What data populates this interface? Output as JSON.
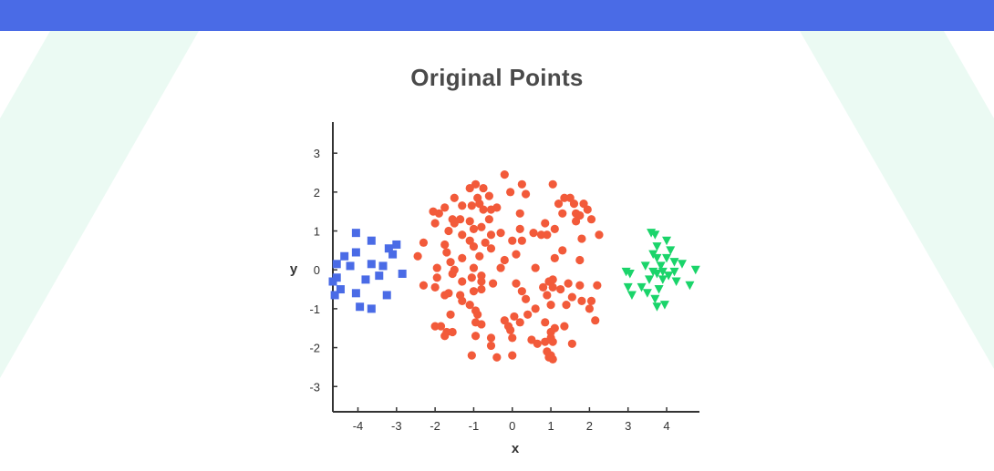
{
  "header": {
    "bar_color": "#4a6be6"
  },
  "chart_data": {
    "type": "scatter",
    "title": "Original Points",
    "xlabel": "x",
    "ylabel": "y",
    "xlim": [
      -4.65,
      4.85
    ],
    "ylim": [
      -3.65,
      3.8
    ],
    "xticks": [
      -4,
      -3,
      -2,
      -1,
      0,
      1,
      2,
      3,
      4
    ],
    "yticks": [
      3,
      2,
      1,
      0,
      -1,
      -2,
      -3
    ],
    "grid": false,
    "series": [
      {
        "marker": "square",
        "color": "#4a6be6",
        "points": [
          [
            -4.05,
            0.95
          ],
          [
            -3.65,
            0.75
          ],
          [
            -3.0,
            0.65
          ],
          [
            -3.2,
            0.55
          ],
          [
            -4.35,
            0.35
          ],
          [
            -4.05,
            0.45
          ],
          [
            -3.1,
            0.4
          ],
          [
            -4.55,
            0.15
          ],
          [
            -3.65,
            0.15
          ],
          [
            -3.35,
            0.1
          ],
          [
            -4.2,
            0.1
          ],
          [
            -3.45,
            -0.15
          ],
          [
            -2.85,
            -0.1
          ],
          [
            -4.55,
            -0.2
          ],
          [
            -3.8,
            -0.25
          ],
          [
            -4.65,
            -0.3
          ],
          [
            -4.05,
            -0.6
          ],
          [
            -4.45,
            -0.5
          ],
          [
            -4.6,
            -0.65
          ],
          [
            -3.25,
            -0.65
          ],
          [
            -3.95,
            -0.95
          ],
          [
            -3.65,
            -1.0
          ]
        ]
      },
      {
        "marker": "circle",
        "color": "#f25a3a",
        "points": [
          [
            -0.2,
            2.45
          ],
          [
            0.25,
            2.2
          ],
          [
            1.05,
            2.2
          ],
          [
            -0.95,
            2.2
          ],
          [
            -1.1,
            2.1
          ],
          [
            -0.75,
            2.1
          ],
          [
            0.35,
            1.95
          ],
          [
            -0.05,
            2.0
          ],
          [
            -0.6,
            1.9
          ],
          [
            -1.5,
            1.85
          ],
          [
            -0.9,
            1.85
          ],
          [
            1.35,
            1.85
          ],
          [
            1.5,
            1.85
          ],
          [
            -0.85,
            1.7
          ],
          [
            1.2,
            1.7
          ],
          [
            1.6,
            1.7
          ],
          [
            1.85,
            1.7
          ],
          [
            -1.05,
            1.65
          ],
          [
            -1.3,
            1.65
          ],
          [
            -1.75,
            1.6
          ],
          [
            -0.4,
            1.6
          ],
          [
            1.95,
            1.55
          ],
          [
            -0.55,
            1.55
          ],
          [
            -0.75,
            1.55
          ],
          [
            -2.05,
            1.5
          ],
          [
            -1.9,
            1.45
          ],
          [
            1.3,
            1.45
          ],
          [
            1.65,
            1.45
          ],
          [
            0.2,
            1.45
          ],
          [
            1.75,
            1.4
          ],
          [
            -1.55,
            1.3
          ],
          [
            2.05,
            1.3
          ],
          [
            -1.35,
            1.3
          ],
          [
            -1.1,
            1.25
          ],
          [
            -0.6,
            1.3
          ],
          [
            1.65,
            1.25
          ],
          [
            -1.5,
            1.2
          ],
          [
            -2.0,
            1.2
          ],
          [
            0.85,
            1.2
          ],
          [
            -0.8,
            1.1
          ],
          [
            0.2,
            1.05
          ],
          [
            1.1,
            1.05
          ],
          [
            -1.65,
            1.0
          ],
          [
            -1.0,
            1.05
          ],
          [
            -0.3,
            0.95
          ],
          [
            0.55,
            0.95
          ],
          [
            0.9,
            0.9
          ],
          [
            -0.55,
            0.9
          ],
          [
            -1.3,
            0.9
          ],
          [
            0.75,
            0.9
          ],
          [
            2.25,
            0.9
          ],
          [
            1.8,
            0.8
          ],
          [
            -1.1,
            0.75
          ],
          [
            0.0,
            0.75
          ],
          [
            0.25,
            0.75
          ],
          [
            -0.7,
            0.7
          ],
          [
            -2.3,
            0.7
          ],
          [
            -1.75,
            0.65
          ],
          [
            -1.0,
            0.6
          ],
          [
            -0.55,
            0.55
          ],
          [
            1.3,
            0.5
          ],
          [
            -1.7,
            0.45
          ],
          [
            0.1,
            0.4
          ],
          [
            -0.85,
            0.35
          ],
          [
            -1.3,
            0.3
          ],
          [
            1.1,
            0.3
          ],
          [
            -2.45,
            0.35
          ],
          [
            1.75,
            0.25
          ],
          [
            -1.6,
            0.2
          ],
          [
            -0.2,
            0.25
          ],
          [
            -1.0,
            0.05
          ],
          [
            0.6,
            0.05
          ],
          [
            -0.3,
            0.05
          ],
          [
            -1.5,
            0.0
          ],
          [
            -1.95,
            0.05
          ],
          [
            -1.55,
            -0.1
          ],
          [
            -0.8,
            -0.15
          ],
          [
            -1.05,
            -0.2
          ],
          [
            -1.95,
            -0.2
          ],
          [
            1.05,
            -0.25
          ],
          [
            -0.8,
            -0.3
          ],
          [
            0.95,
            -0.3
          ],
          [
            -1.3,
            -0.3
          ],
          [
            -0.5,
            -0.35
          ],
          [
            0.1,
            -0.35
          ],
          [
            1.45,
            -0.35
          ],
          [
            1.75,
            -0.4
          ],
          [
            2.2,
            -0.4
          ],
          [
            0.8,
            -0.45
          ],
          [
            1.05,
            -0.45
          ],
          [
            -2.3,
            -0.4
          ],
          [
            -2.0,
            -0.45
          ],
          [
            -1.65,
            -0.6
          ],
          [
            -0.8,
            -0.5
          ],
          [
            -1.0,
            -0.55
          ],
          [
            1.25,
            -0.5
          ],
          [
            0.25,
            -0.55
          ],
          [
            -1.75,
            -0.65
          ],
          [
            -1.35,
            -0.65
          ],
          [
            0.9,
            -0.65
          ],
          [
            1.55,
            -0.7
          ],
          [
            0.35,
            -0.75
          ],
          [
            1.8,
            -0.8
          ],
          [
            2.05,
            -0.8
          ],
          [
            -1.3,
            -0.8
          ],
          [
            -1.1,
            -0.9
          ],
          [
            1.0,
            -0.9
          ],
          [
            1.4,
            -0.9
          ],
          [
            -0.95,
            -1.05
          ],
          [
            0.6,
            -1.0
          ],
          [
            2.0,
            -1.0
          ],
          [
            -0.9,
            -1.15
          ],
          [
            0.4,
            -1.15
          ],
          [
            -1.6,
            -1.15
          ],
          [
            0.05,
            -1.2
          ],
          [
            -0.2,
            -1.3
          ],
          [
            2.15,
            -1.3
          ],
          [
            -0.95,
            -1.35
          ],
          [
            -0.8,
            -1.4
          ],
          [
            0.2,
            -1.35
          ],
          [
            0.85,
            -1.35
          ],
          [
            -1.85,
            -1.45
          ],
          [
            -0.1,
            -1.45
          ],
          [
            1.35,
            -1.45
          ],
          [
            1.1,
            -1.5
          ],
          [
            -0.05,
            -1.55
          ],
          [
            -1.7,
            -1.6
          ],
          [
            -1.55,
            -1.6
          ],
          [
            -2.0,
            -1.45
          ],
          [
            1.0,
            -1.6
          ],
          [
            -0.95,
            -1.7
          ],
          [
            -1.75,
            -1.7
          ],
          [
            0.0,
            -1.75
          ],
          [
            1.0,
            -1.75
          ],
          [
            0.5,
            -1.8
          ],
          [
            0.85,
            -1.85
          ],
          [
            1.05,
            -1.85
          ],
          [
            -0.55,
            -1.75
          ],
          [
            0.65,
            -1.9
          ],
          [
            1.55,
            -1.9
          ],
          [
            -0.55,
            -1.95
          ],
          [
            0.9,
            -2.1
          ],
          [
            1.0,
            -2.2
          ],
          [
            0.95,
            -2.25
          ],
          [
            -1.05,
            -2.2
          ],
          [
            0.0,
            -2.2
          ],
          [
            -0.4,
            -2.25
          ],
          [
            1.05,
            -2.3
          ]
        ]
      },
      {
        "marker": "triangle-down",
        "color": "#1ad46a",
        "points": [
          [
            3.6,
            0.95
          ],
          [
            3.7,
            0.9
          ],
          [
            4.0,
            0.75
          ],
          [
            3.75,
            0.6
          ],
          [
            4.1,
            0.5
          ],
          [
            3.65,
            0.4
          ],
          [
            3.75,
            0.3
          ],
          [
            4.0,
            0.3
          ],
          [
            4.2,
            0.2
          ],
          [
            3.45,
            0.1
          ],
          [
            3.85,
            0.1
          ],
          [
            4.4,
            0.15
          ],
          [
            4.75,
            0.0
          ],
          [
            3.65,
            -0.05
          ],
          [
            3.9,
            -0.05
          ],
          [
            4.2,
            -0.05
          ],
          [
            2.95,
            -0.05
          ],
          [
            3.05,
            -0.1
          ],
          [
            3.75,
            -0.1
          ],
          [
            4.05,
            -0.15
          ],
          [
            3.55,
            -0.25
          ],
          [
            3.9,
            -0.25
          ],
          [
            4.25,
            -0.3
          ],
          [
            4.6,
            -0.4
          ],
          [
            3.0,
            -0.45
          ],
          [
            3.35,
            -0.45
          ],
          [
            3.8,
            -0.5
          ],
          [
            3.1,
            -0.65
          ],
          [
            3.5,
            -0.6
          ],
          [
            3.7,
            -0.75
          ],
          [
            3.95,
            -0.9
          ],
          [
            3.75,
            -0.95
          ]
        ]
      }
    ]
  }
}
